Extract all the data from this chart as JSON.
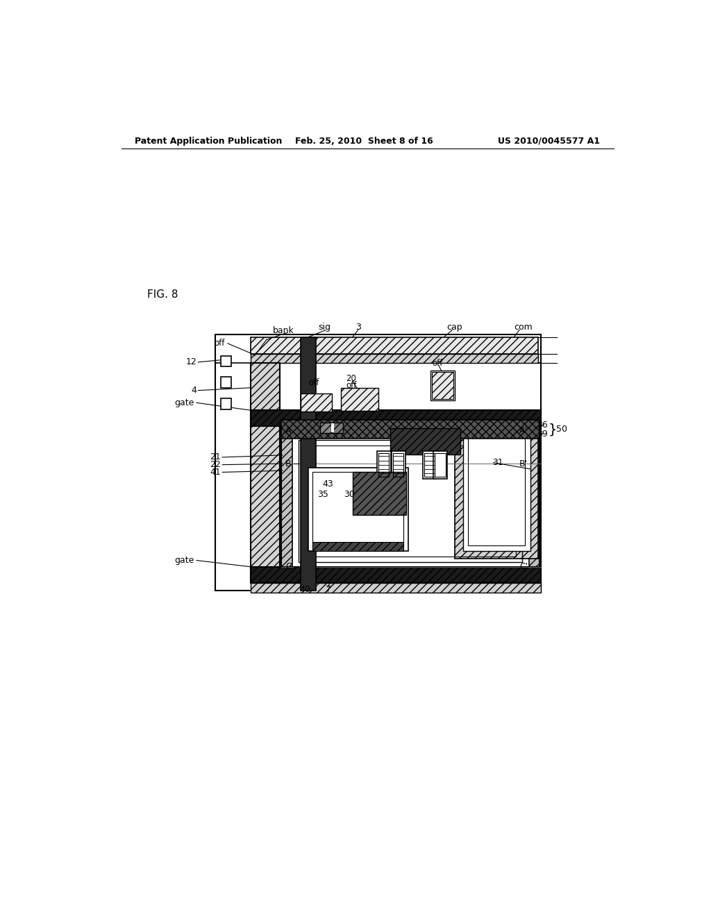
{
  "header_left": "Patent Application Publication",
  "header_center": "Feb. 25, 2010  Sheet 8 of 16",
  "header_right": "US 2010/0045577 A1",
  "fig_label": "FIG. 8",
  "bg_color": "#ffffff"
}
